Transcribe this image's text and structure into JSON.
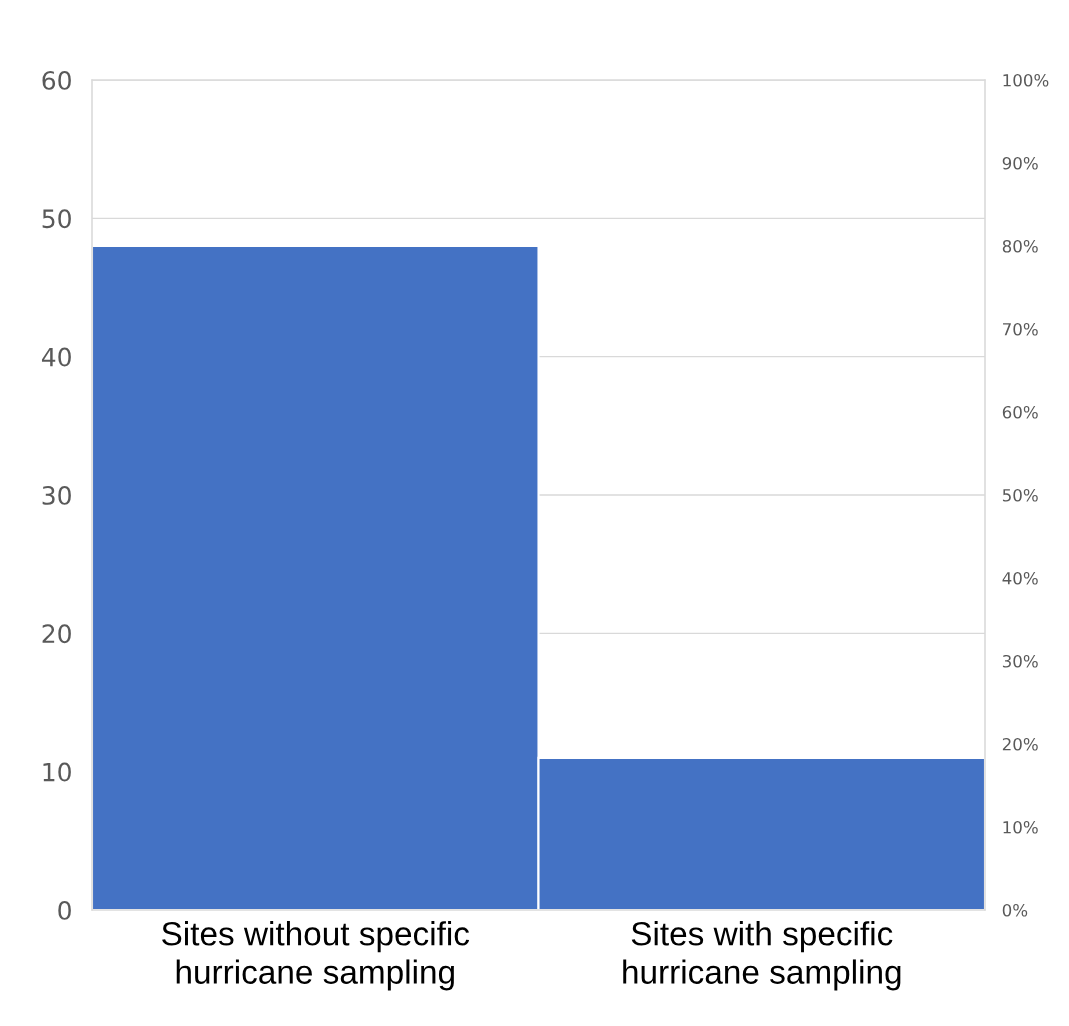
{
  "chart_data": {
    "type": "bar",
    "categories": [
      "Sites without specific\nhurricane sampling",
      "Sites with specific\nhurricane sampling"
    ],
    "values": [
      48,
      11
    ],
    "color": "#4472c4",
    "ylim": [
      0,
      60
    ],
    "yticks": [
      0,
      10,
      20,
      30,
      40,
      50,
      60
    ],
    "y2lim": [
      0,
      100
    ],
    "y2ticks": [
      {
        "value": 0,
        "label": "0%"
      },
      {
        "value": 10,
        "label": "10%"
      },
      {
        "value": 20,
        "label": "20%"
      },
      {
        "value": 30,
        "label": "30%"
      },
      {
        "value": 40,
        "label": "40%"
      },
      {
        "value": 50,
        "label": "50%"
      },
      {
        "value": 60,
        "label": "60%"
      },
      {
        "value": 70,
        "label": "70%"
      },
      {
        "value": 80,
        "label": "80%"
      },
      {
        "value": 90,
        "label": "90%"
      },
      {
        "value": 100,
        "label": "100%"
      }
    ],
    "grid": "y"
  }
}
